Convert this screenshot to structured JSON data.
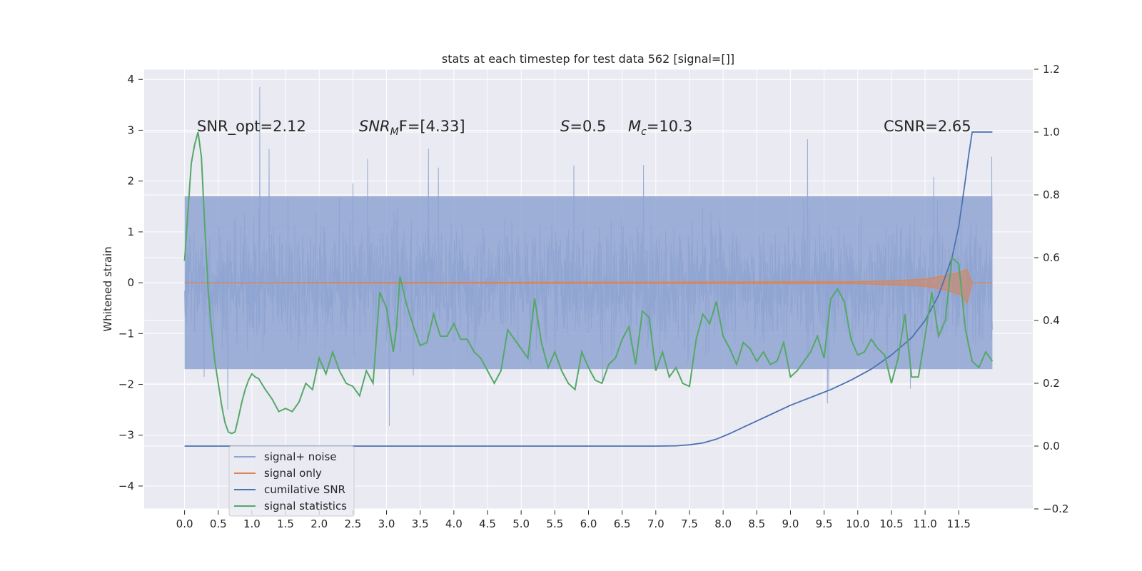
{
  "chart_data": {
    "type": "line",
    "title": "stats at each timestep for test data 562 [signal=[]]",
    "xlabel": "",
    "ylabel": "Whitened strain",
    "y2label": "",
    "xlim": [
      -0.6,
      12.6
    ],
    "ylim": [
      -4.45,
      4.2
    ],
    "y2lim": [
      -0.2,
      1.2
    ],
    "x_ticks": [
      "0.0",
      "0.5",
      "1.0",
      "1.5",
      "2.0",
      "2.5",
      "3.0",
      "3.5",
      "4.0",
      "4.5",
      "5.0",
      "5.5",
      "6.0",
      "6.5",
      "7.0",
      "7.5",
      "8.0",
      "8.5",
      "9.0",
      "9.5",
      "10.0",
      "10.5",
      "11.0",
      "11.5"
    ],
    "y_ticks": [
      "4",
      "3",
      "2",
      "1",
      "0",
      "−1",
      "−2",
      "−3",
      "−4"
    ],
    "y2_ticks": [
      "1.2",
      "1.0",
      "0.8",
      "0.6",
      "0.4",
      "0.2",
      "0.0",
      "−0.2"
    ],
    "grid": true,
    "legend_position": "lower-left",
    "annotations": [
      "SNR_opt=2.12",
      "SNR_M F=[4.33]",
      "S=0.5",
      "M_c=10.3",
      "CSNR=2.65"
    ],
    "annotation_parts": {
      "snr_mf": {
        "base": "SNR",
        "sub": "M",
        "rest": "F=[4.33]"
      },
      "s": {
        "italic": "S",
        "rest": "=0.5"
      },
      "mc": {
        "base": "M",
        "sub": "c",
        "rest": "=10.3"
      }
    },
    "series": [
      {
        "name": "signal+ noise",
        "axis": "left",
        "color": "#8fa4d2",
        "note": "whitened noisy strain, dense trace over 0.0–12.0 s",
        "envelope": {
          "x": [
            0,
            12
          ],
          "core_range": [
            -1.7,
            1.7
          ],
          "peak_range": [
            -4.05,
            3.85
          ]
        }
      },
      {
        "name": "signal only",
        "axis": "left",
        "color": "#dd8452",
        "x": [
          0.0,
          10.0,
          10.5,
          11.0,
          11.3,
          11.55,
          11.62,
          11.7,
          12.0
        ],
        "upper": [
          0.0,
          0.02,
          0.04,
          0.07,
          0.14,
          0.22,
          0.26,
          0.0,
          0.0
        ],
        "lower": [
          0.0,
          -0.02,
          -0.04,
          -0.07,
          -0.14,
          -0.25,
          -0.4,
          0.0,
          0.0
        ]
      },
      {
        "name": "cumilative SNR",
        "axis": "right",
        "color": "#4c72b0",
        "x": [
          0.0,
          7.0,
          7.3,
          7.5,
          7.7,
          7.9,
          8.1,
          8.3,
          8.5,
          8.7,
          9.0,
          9.3,
          9.6,
          9.9,
          10.2,
          10.5,
          10.8,
          11.0,
          11.2,
          11.4,
          11.5,
          11.6,
          11.65,
          11.7,
          12.0
        ],
        "values": [
          0.0,
          0.0,
          0.001,
          0.004,
          0.01,
          0.022,
          0.04,
          0.06,
          0.08,
          0.1,
          0.13,
          0.155,
          0.18,
          0.21,
          0.245,
          0.29,
          0.345,
          0.4,
          0.48,
          0.6,
          0.7,
          0.85,
          0.93,
          1.0,
          1.0
        ]
      },
      {
        "name": "signal statistics",
        "axis": "right",
        "color": "#55a868",
        "x": [
          0.0,
          0.1,
          0.15,
          0.2,
          0.25,
          0.3,
          0.35,
          0.4,
          0.45,
          0.5,
          0.55,
          0.6,
          0.65,
          0.7,
          0.75,
          0.8,
          0.85,
          0.9,
          0.95,
          1.0,
          1.05,
          1.1,
          1.2,
          1.3,
          1.4,
          1.5,
          1.6,
          1.7,
          1.8,
          1.9,
          2.0,
          2.1,
          2.2,
          2.3,
          2.4,
          2.5,
          2.6,
          2.7,
          2.8,
          2.9,
          3.0,
          3.1,
          3.15,
          3.2,
          3.3,
          3.4,
          3.5,
          3.6,
          3.7,
          3.8,
          3.9,
          4.0,
          4.1,
          4.2,
          4.3,
          4.4,
          4.5,
          4.6,
          4.7,
          4.8,
          4.9,
          5.0,
          5.1,
          5.2,
          5.3,
          5.4,
          5.5,
          5.6,
          5.7,
          5.8,
          5.9,
          6.0,
          6.1,
          6.2,
          6.3,
          6.4,
          6.5,
          6.6,
          6.7,
          6.8,
          6.9,
          7.0,
          7.1,
          7.2,
          7.3,
          7.4,
          7.5,
          7.6,
          7.7,
          7.8,
          7.9,
          8.0,
          8.1,
          8.2,
          8.3,
          8.4,
          8.5,
          8.6,
          8.7,
          8.8,
          8.9,
          9.0,
          9.1,
          9.2,
          9.3,
          9.4,
          9.5,
          9.6,
          9.7,
          9.8,
          9.9,
          10.0,
          10.1,
          10.2,
          10.3,
          10.4,
          10.5,
          10.6,
          10.7,
          10.8,
          10.9,
          11.0,
          11.1,
          11.2,
          11.3,
          11.4,
          11.5,
          11.6,
          11.7,
          11.8,
          11.9,
          12.0
        ],
        "values": [
          0.59,
          0.9,
          0.96,
          1.0,
          0.92,
          0.7,
          0.5,
          0.37,
          0.27,
          0.2,
          0.13,
          0.075,
          0.045,
          0.04,
          0.045,
          0.09,
          0.14,
          0.18,
          0.21,
          0.23,
          0.22,
          0.215,
          0.18,
          0.15,
          0.11,
          0.12,
          0.11,
          0.14,
          0.2,
          0.18,
          0.28,
          0.23,
          0.3,
          0.24,
          0.2,
          0.19,
          0.16,
          0.24,
          0.2,
          0.49,
          0.44,
          0.3,
          0.38,
          0.54,
          0.45,
          0.38,
          0.32,
          0.33,
          0.42,
          0.35,
          0.35,
          0.39,
          0.34,
          0.34,
          0.3,
          0.28,
          0.24,
          0.2,
          0.24,
          0.37,
          0.34,
          0.31,
          0.28,
          0.47,
          0.33,
          0.25,
          0.3,
          0.24,
          0.2,
          0.18,
          0.3,
          0.25,
          0.21,
          0.2,
          0.26,
          0.28,
          0.34,
          0.38,
          0.26,
          0.43,
          0.41,
          0.24,
          0.3,
          0.22,
          0.25,
          0.2,
          0.19,
          0.34,
          0.42,
          0.39,
          0.46,
          0.35,
          0.31,
          0.26,
          0.33,
          0.31,
          0.27,
          0.3,
          0.26,
          0.27,
          0.33,
          0.22,
          0.24,
          0.27,
          0.3,
          0.35,
          0.28,
          0.47,
          0.5,
          0.46,
          0.34,
          0.29,
          0.3,
          0.34,
          0.31,
          0.29,
          0.2,
          0.28,
          0.42,
          0.22,
          0.22,
          0.35,
          0.49,
          0.35,
          0.4,
          0.6,
          0.58,
          0.37,
          0.27,
          0.25,
          0.3,
          0.27
        ]
      }
    ]
  },
  "legend": [
    "signal+ noise",
    "signal only",
    "cumilative SNR",
    "signal statistics"
  ],
  "colors": {
    "axes_bg": "#eaeaf2",
    "grid": "#ffffff",
    "noise": "#8fa4d2",
    "signal": "#dd8452",
    "csnr": "#4c72b0",
    "stats": "#55a868",
    "text": "#262626"
  }
}
